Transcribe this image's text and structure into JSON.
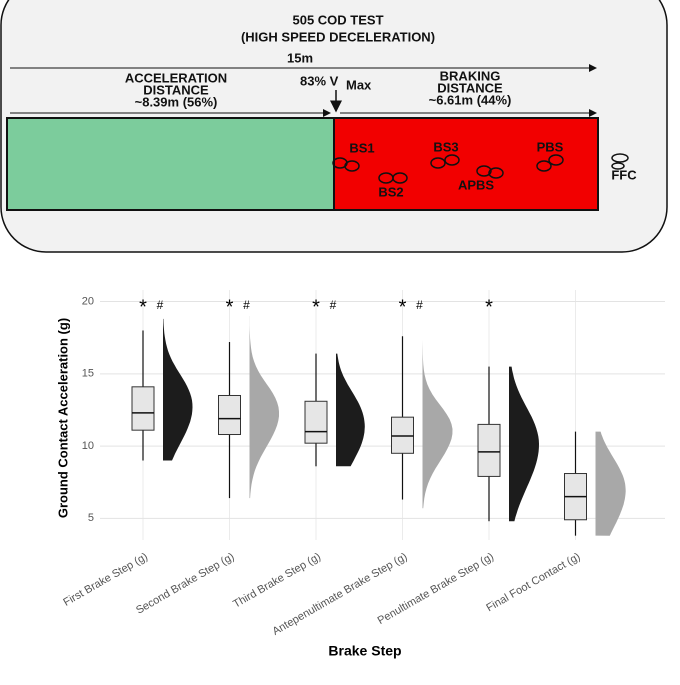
{
  "diagram": {
    "title_lines": [
      "505 COD TEST",
      "(HIGH SPEED DECELERATION)"
    ],
    "total_distance": "15m",
    "acceleration_lines": [
      "ACCELERATION",
      "DISTANCE",
      "~8.39m (56%)"
    ],
    "vmax_label": "83% V",
    "vmax_subscript": "Max",
    "braking_lines": [
      "BRAKING",
      "DISTANCE",
      "~6.61m (44%)"
    ],
    "steps": [
      "BS1",
      "BS2",
      "BS3",
      "APBS",
      "PBS",
      "FFC"
    ]
  },
  "chart_data": {
    "type": "raincloud",
    "y_label": "Ground Contact Acceleration (g)",
    "x_label": "Brake Step",
    "categories": [
      "First Brake Step (g)",
      "Second Brake Step (g)",
      "Third Brake Step (g)",
      "Antepenultimate Brake Step (g)",
      "Penultimate Brake Step (g)",
      "Final Foot Contact (g)"
    ],
    "whisker_low": [
      9.0,
      6.4,
      8.6,
      6.3,
      4.8,
      3.8
    ],
    "q1": [
      11.1,
      10.8,
      10.2,
      9.5,
      7.9,
      4.9
    ],
    "median": [
      12.3,
      11.9,
      11.0,
      10.7,
      9.6,
      6.5
    ],
    "q3": [
      14.1,
      13.5,
      13.1,
      12.0,
      11.5,
      8.1
    ],
    "whisker_high": [
      18.0,
      17.2,
      16.4,
      17.6,
      15.5,
      11.0
    ],
    "violin_min": [
      9.0,
      6.4,
      8.6,
      5.7,
      4.8,
      3.8
    ],
    "violin_max": [
      18.8,
      19.0,
      16.4,
      19.4,
      15.5,
      11.0
    ],
    "violin_colors": [
      "#1c1c1c",
      "#a8a8a8",
      "#1c1c1c",
      "#a8a8a8",
      "#1c1c1c",
      "#a8a8a8"
    ],
    "box_color": "#e6e6e6",
    "star_labels": [
      "*",
      "*",
      "*",
      "*",
      "*",
      null
    ],
    "hash_labels": [
      "#",
      "#",
      "#",
      "#",
      null,
      null
    ],
    "ylim": [
      3.5,
      20.8
    ],
    "yticks": [
      5,
      10,
      15,
      20
    ],
    "grid": true
  }
}
